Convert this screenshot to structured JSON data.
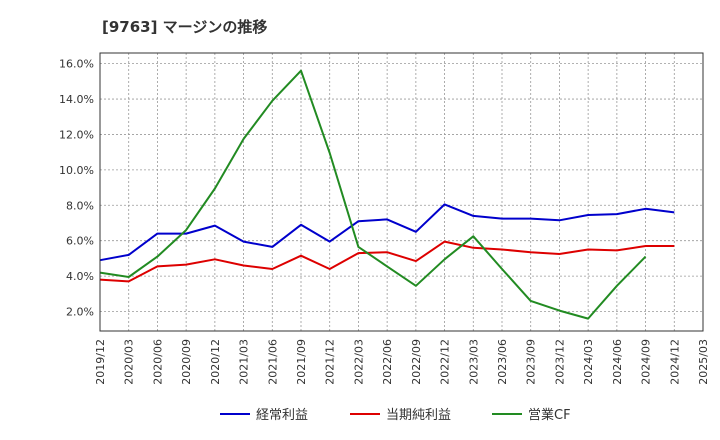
{
  "chart_data": {
    "type": "line",
    "title": "[9763]  マージンの推移",
    "xlabel": "",
    "ylabel": "",
    "x": [
      "2019/12",
      "2020/03",
      "2020/06",
      "2020/09",
      "2020/12",
      "2021/03",
      "2021/06",
      "2021/09",
      "2021/12",
      "2022/03",
      "2022/06",
      "2022/09",
      "2022/12",
      "2023/03",
      "2023/06",
      "2023/09",
      "2023/12",
      "2024/03",
      "2024/06",
      "2024/09",
      "2024/12",
      "2025/03"
    ],
    "yticks": [
      2.0,
      4.0,
      6.0,
      8.0,
      10.0,
      12.0,
      14.0,
      16.0
    ],
    "ytick_labels": [
      "2.0%",
      "4.0%",
      "6.0%",
      "8.0%",
      "10.0%",
      "12.0%",
      "14.0%",
      "16.0%"
    ],
    "ylim": [
      0.9,
      16.6
    ],
    "grid": true,
    "legend_position": "bottom",
    "series": [
      {
        "name": "経常利益",
        "color": "#0000cc",
        "values": [
          4.9,
          5.2,
          6.4,
          6.4,
          6.85,
          5.95,
          5.65,
          6.9,
          5.95,
          7.1,
          7.2,
          6.5,
          8.05,
          7.4,
          7.25,
          7.25,
          7.15,
          7.45,
          7.5,
          7.8,
          7.6,
          null
        ]
      },
      {
        "name": "当期純利益",
        "color": "#dd0000",
        "values": [
          3.8,
          3.7,
          4.55,
          4.65,
          4.95,
          4.6,
          4.4,
          5.15,
          4.4,
          5.3,
          5.35,
          4.85,
          5.95,
          5.6,
          5.5,
          5.35,
          5.25,
          5.5,
          5.45,
          5.7,
          5.7,
          null
        ]
      },
      {
        "name": "営業CF",
        "color": "#228b22",
        "values": [
          4.2,
          3.95,
          5.1,
          6.6,
          8.95,
          11.75,
          13.9,
          15.6,
          10.95,
          5.65,
          4.55,
          3.45,
          4.95,
          6.25,
          4.4,
          2.6,
          2.05,
          1.6,
          3.45,
          5.1,
          null,
          null
        ]
      }
    ]
  }
}
